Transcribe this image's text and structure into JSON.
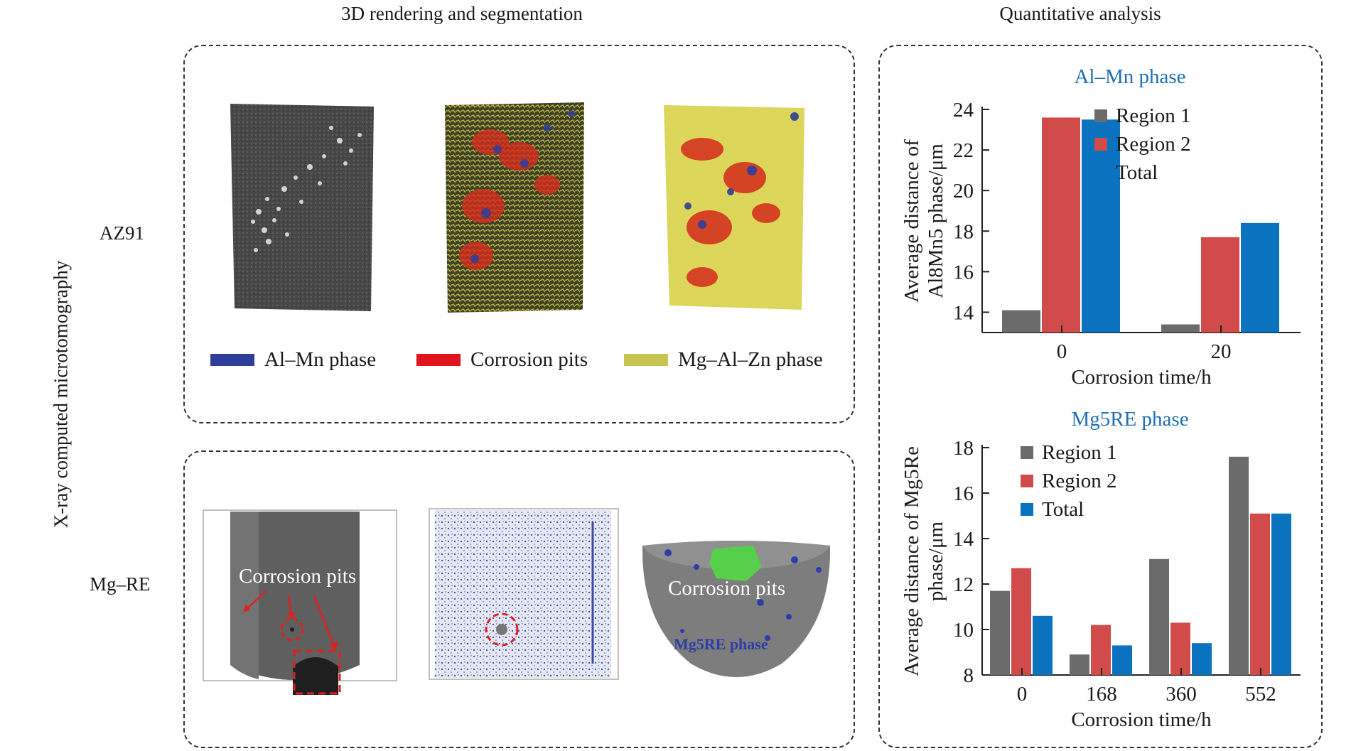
{
  "headings": {
    "rendering": "3D rendering and segmentation",
    "quantitative": "Quantitative analysis"
  },
  "side_label": "X-ray computed microtomography",
  "rows": {
    "az91": "AZ91",
    "mgre": "Mg–RE"
  },
  "legend": [
    {
      "label": "Al–Mn phase",
      "color": "#2e3e9a"
    },
    {
      "label": "Corrosion pits",
      "color": "#e0141a"
    },
    {
      "label": "Mg–Al–Zn phase",
      "color": "#c6c552"
    }
  ],
  "image_labels": {
    "pits_1": "Corrosion pits",
    "pits_3": "Corrosion pits",
    "mg5re_phase": "Mg5RE phase"
  },
  "colors": {
    "region1": "#6b6b6b",
    "region2": "#d24b4b",
    "total": "#0b72c0",
    "title_blue": "#1f6fb2"
  },
  "chart_data": [
    {
      "type": "bar",
      "title": "Al–Mn phase",
      "ylabel_line1": "Average distance of",
      "ylabel_line2": "Al8Mn5 phase/μm",
      "xlabel": "Corrosion time/h",
      "categories": [
        "0",
        "20"
      ],
      "ylim": [
        13,
        24
      ],
      "yticks": [
        14,
        16,
        18,
        20,
        22,
        24
      ],
      "legend_position": "top-right",
      "series": [
        {
          "name": "Region 1",
          "values": [
            14.1,
            13.4
          ]
        },
        {
          "name": "Region 2",
          "values": [
            23.6,
            17.7
          ]
        },
        {
          "name": "Total",
          "values": [
            23.5,
            18.4
          ]
        }
      ]
    },
    {
      "type": "bar",
      "title": "Mg5RE phase",
      "ylabel_line1": "Average distance of Mg5Re",
      "ylabel_line2": "phase/μm",
      "xlabel": "Corrosion time/h",
      "categories": [
        "0",
        "168",
        "360",
        "552"
      ],
      "ylim": [
        8,
        18
      ],
      "yticks": [
        8,
        10,
        12,
        14,
        16,
        18
      ],
      "legend_position": "top-left",
      "series": [
        {
          "name": "Region 1",
          "values": [
            11.7,
            8.9,
            13.1,
            17.6
          ]
        },
        {
          "name": "Region 2",
          "values": [
            12.7,
            10.2,
            10.3,
            15.1
          ]
        },
        {
          "name": "Total",
          "values": [
            10.6,
            9.3,
            9.4,
            15.1
          ]
        }
      ]
    }
  ]
}
